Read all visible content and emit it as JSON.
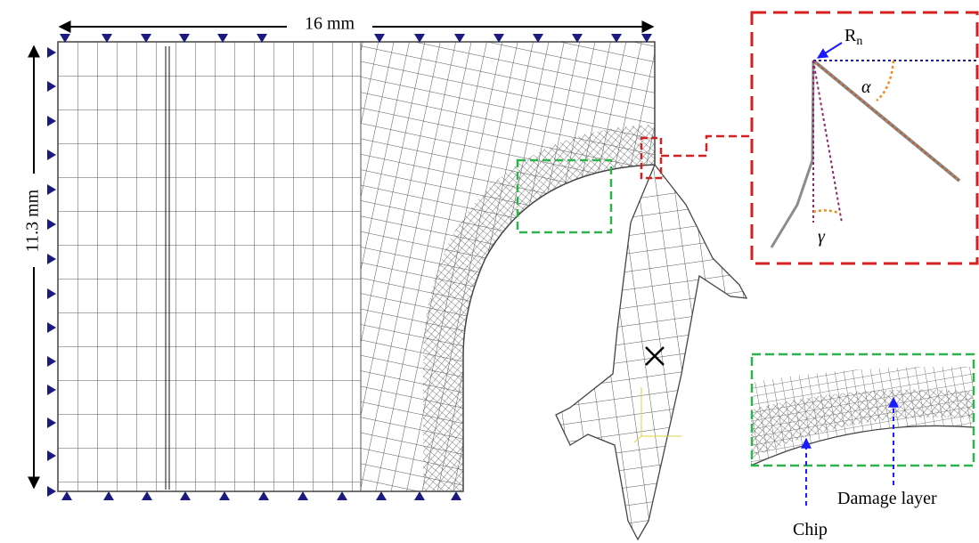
{
  "dimensions": {
    "width": "16 mm",
    "height": "11.3 mm"
  },
  "tool_detail": {
    "edge_radius": "R",
    "edge_radius_subscript": "n",
    "clearance_angle": "α",
    "rake_angle": "γ"
  },
  "zoom_detail": {
    "damage_layer": "Damage layer",
    "chip": "Chip"
  }
}
